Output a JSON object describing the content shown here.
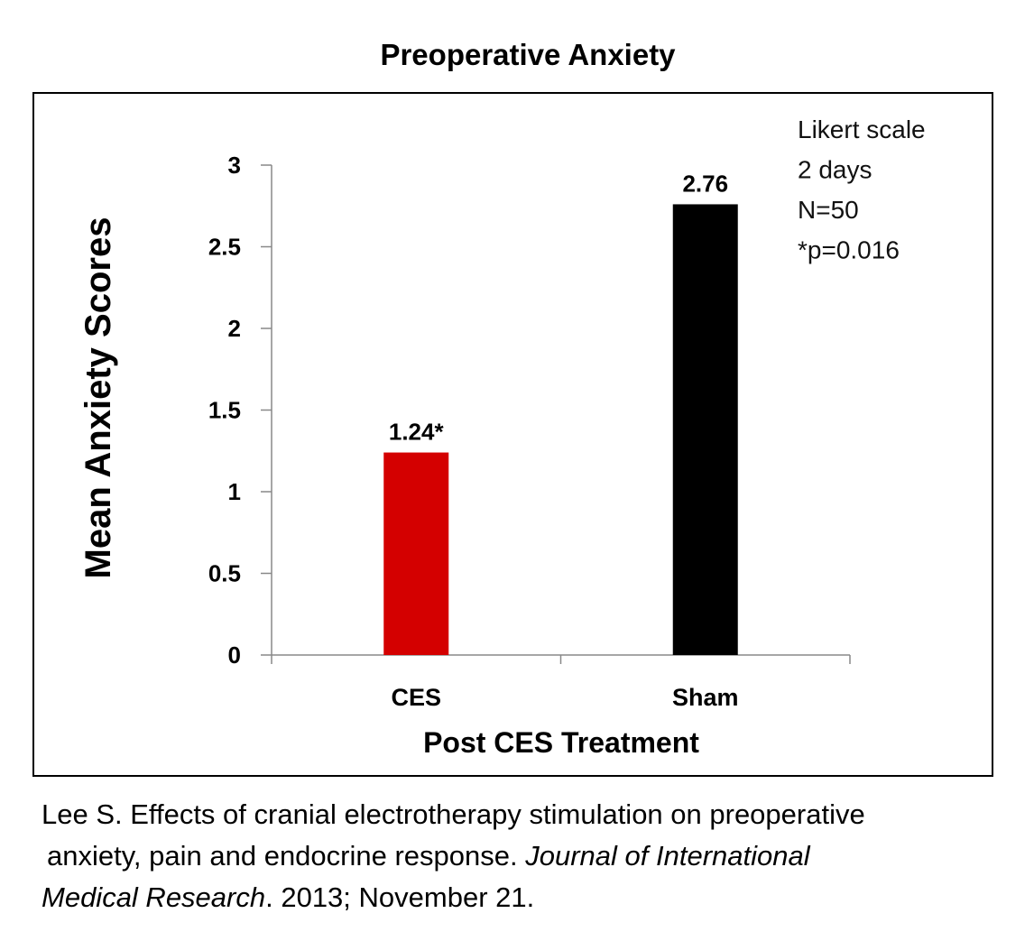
{
  "chart_data": {
    "type": "bar",
    "title": "Preoperative Anxiety",
    "xlabel": "Post CES Treatment",
    "ylabel": "Mean Anxiety Scores",
    "categories": [
      "CES",
      "Sham"
    ],
    "values": [
      1.24,
      2.76
    ],
    "data_labels": [
      "1.24*",
      "2.76"
    ],
    "bar_colors": [
      "#d40000",
      "#000000"
    ],
    "ylim": [
      0,
      3
    ],
    "yticks": [
      0,
      0.5,
      1,
      1.5,
      2,
      2.5,
      3
    ],
    "ytick_labels": [
      "0",
      "0.5",
      "1",
      "1.5",
      "2",
      "2.5",
      "3"
    ],
    "grid": false,
    "annotation": [
      "Likert scale",
      "2 days",
      "N=50",
      "*p=0.016"
    ]
  },
  "citation": {
    "line1": "Lee S. Effects of cranial electrotherapy stimulation on preoperative",
    "line2_plain": "anxiety, pain and endocrine response. ",
    "line2_italic": "Journal of International",
    "line3_italic": "Medical Research",
    "line3_plain": ". 2013; November 21."
  }
}
